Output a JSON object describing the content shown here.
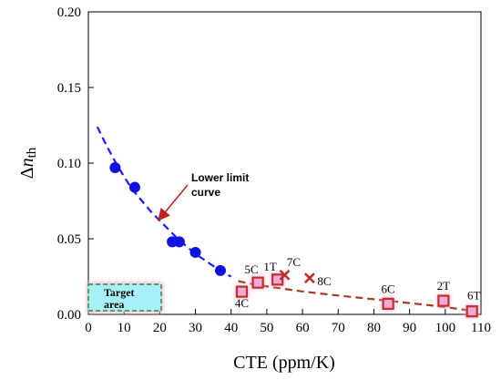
{
  "chart_data": {
    "type": "scatter",
    "xlabel": "CTE (ppm/K)",
    "ylabel_symbol": "Δ",
    "ylabel_var": "n",
    "ylabel_sub": "th",
    "xlim": [
      0,
      110
    ],
    "ylim": [
      0,
      0.2
    ],
    "xticks": [
      "0",
      "10",
      "20",
      "30",
      "40",
      "50",
      "60",
      "70",
      "80",
      "90",
      "100",
      "110"
    ],
    "yticks": [
      "0.00",
      "0.05",
      "0.10",
      "0.15",
      "0.20"
    ],
    "grid": false,
    "colors": {
      "blue_points": "#1010e0",
      "blue_curve": "#1a1aff",
      "red_points": "#c0302a",
      "red_curve": "#a83c1c",
      "marker_glow": "#f0a8d8",
      "target_fill": "#a8f0f8",
      "target_border": "#2e8b2e",
      "arrow": "#c02020"
    },
    "blue_points": [
      {
        "x": 7.5,
        "y": 0.097
      },
      {
        "x": 13.0,
        "y": 0.084
      },
      {
        "x": 23.5,
        "y": 0.048
      },
      {
        "x": 25.5,
        "y": 0.048
      },
      {
        "x": 30.0,
        "y": 0.041
      },
      {
        "x": 37.0,
        "y": 0.029
      }
    ],
    "red_squares": [
      {
        "x": 43.0,
        "y": 0.015,
        "label": "4C"
      },
      {
        "x": 47.5,
        "y": 0.021,
        "label": "5C"
      },
      {
        "x": 53.0,
        "y": 0.023,
        "label": "1T"
      },
      {
        "x": 84.0,
        "y": 0.007,
        "label": "6C"
      },
      {
        "x": 99.5,
        "y": 0.009,
        "label": "2T"
      },
      {
        "x": 107.5,
        "y": 0.002,
        "label": "6T"
      }
    ],
    "red_crosses": [
      {
        "x": 55.0,
        "y": 0.026,
        "label": "7C"
      },
      {
        "x": 62.0,
        "y": 0.024,
        "label": "8C"
      }
    ],
    "blue_curve": [
      [
        2.5,
        0.124
      ],
      [
        5,
        0.112
      ],
      [
        7.5,
        0.101
      ],
      [
        10,
        0.091
      ],
      [
        12.5,
        0.082
      ],
      [
        15,
        0.075
      ],
      [
        17.5,
        0.068
      ],
      [
        20,
        0.062
      ],
      [
        22.5,
        0.056
      ],
      [
        25,
        0.05
      ],
      [
        27.5,
        0.045
      ],
      [
        30,
        0.04
      ],
      [
        32.5,
        0.036
      ],
      [
        35,
        0.032
      ],
      [
        37.5,
        0.028
      ],
      [
        40,
        0.025
      ]
    ],
    "red_curve": [
      [
        42,
        0.022
      ],
      [
        46,
        0.02
      ],
      [
        50,
        0.0185
      ],
      [
        55,
        0.0168
      ],
      [
        60,
        0.0152
      ],
      [
        65,
        0.0138
      ],
      [
        70,
        0.0125
      ],
      [
        75,
        0.0112
      ],
      [
        80,
        0.01
      ],
      [
        85,
        0.0088
      ],
      [
        90,
        0.0075
      ],
      [
        95,
        0.0062
      ],
      [
        100,
        0.0048
      ],
      [
        105,
        0.0032
      ],
      [
        108,
        0.0022
      ]
    ],
    "annotation": {
      "line1": "Lower limit",
      "line2": "curve"
    },
    "target_area": {
      "line1": "Target",
      "line2": "area"
    }
  }
}
